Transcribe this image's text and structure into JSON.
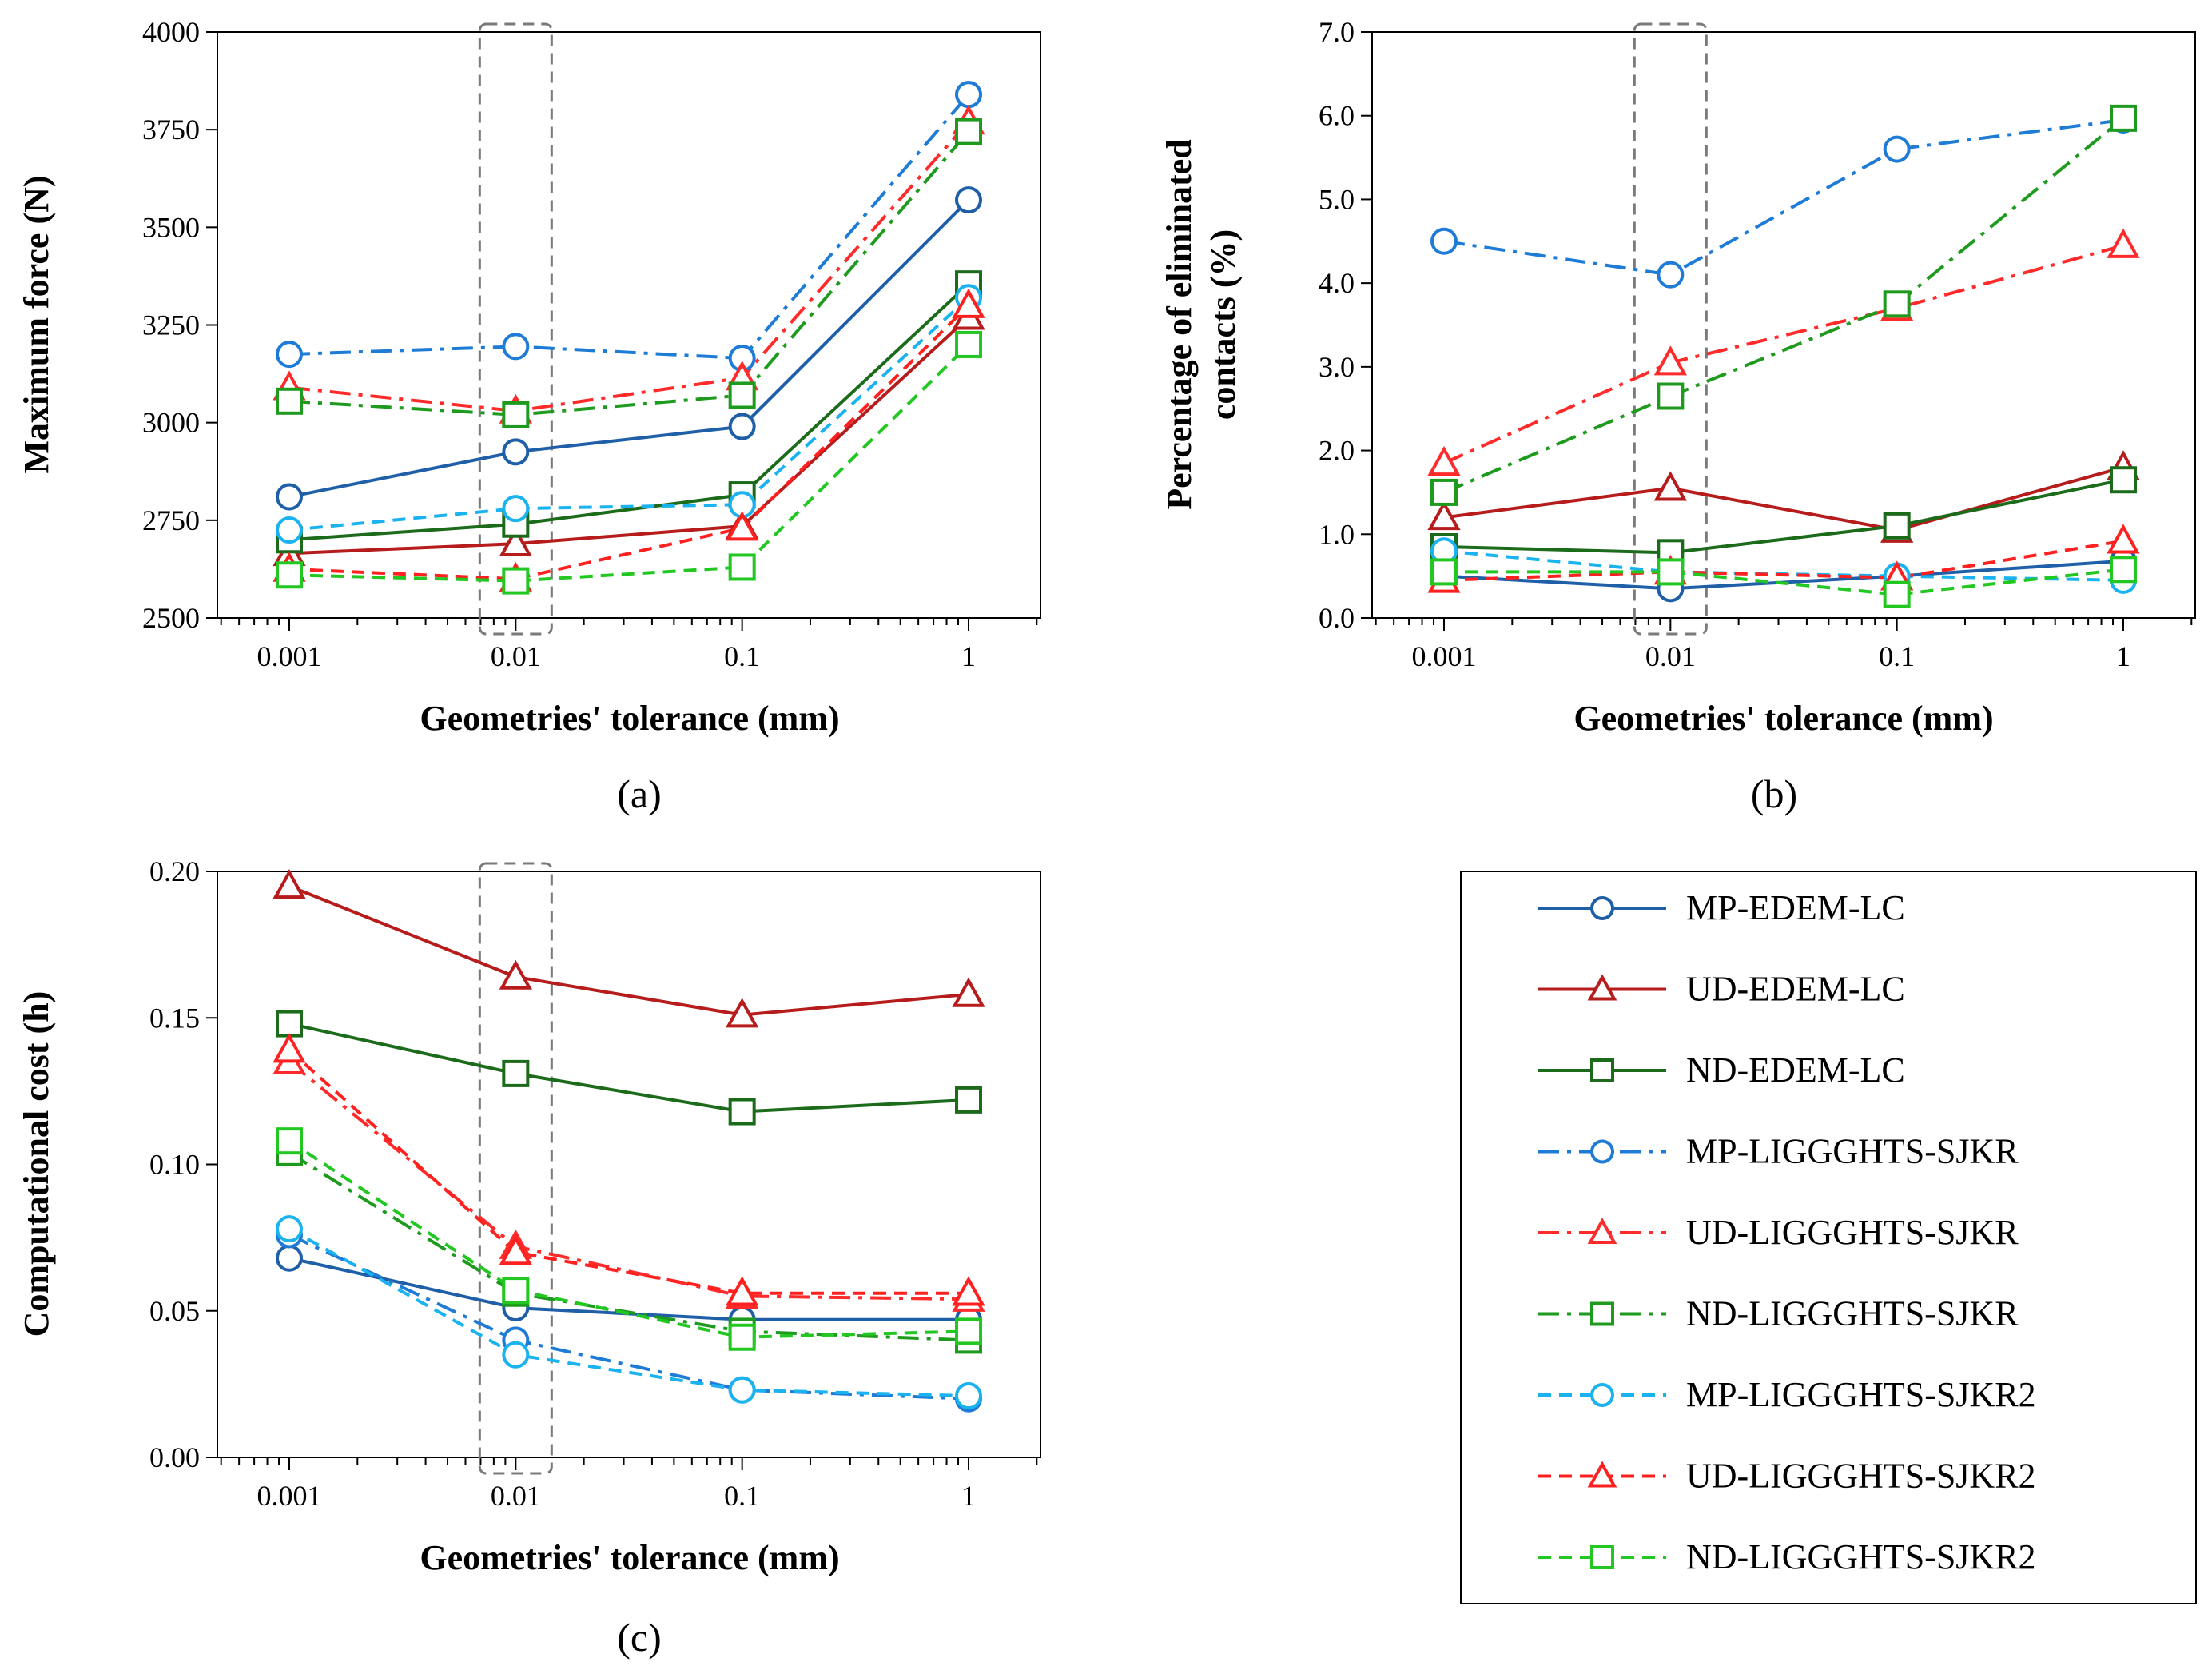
{
  "chart_data": [
    {
      "type": "line",
      "panel": "a",
      "caption": "(a)",
      "xscale": "log",
      "x": [
        0.001,
        0.01,
        0.1,
        1
      ],
      "xticks": [
        "0.001",
        "0.01",
        "0.1",
        "1"
      ],
      "xlabel": "Geometries' tolerance (mm)",
      "ylabel": "Maximum force (N)",
      "ylim": [
        2500,
        4000
      ],
      "yticks": [
        "2500",
        "2750",
        "3000",
        "3250",
        "3500",
        "3750",
        "4000"
      ],
      "highlight_x": 0.01,
      "series": [
        {
          "name": "MP-EDEM-LC",
          "values": [
            2810,
            2925,
            2990,
            3570
          ]
        },
        {
          "name": "UD-EDEM-LC",
          "values": [
            2665,
            2690,
            2735,
            3270
          ]
        },
        {
          "name": "ND-EDEM-LC",
          "values": [
            2700,
            2740,
            2815,
            3355
          ]
        },
        {
          "name": "MP-LIGGGHTS-SJKR",
          "values": [
            3175,
            3195,
            3165,
            3840
          ]
        },
        {
          "name": "UD-LIGGGHTS-SJKR",
          "values": [
            3090,
            3030,
            3115,
            3770
          ]
        },
        {
          "name": "ND-LIGGGHTS-SJKR",
          "values": [
            3055,
            3020,
            3070,
            3745
          ]
        },
        {
          "name": "MP-LIGGGHTS-SJKR2",
          "values": [
            2725,
            2780,
            2790,
            3320
          ]
        },
        {
          "name": "UD-LIGGGHTS-SJKR2",
          "values": [
            2625,
            2600,
            2730,
            3300
          ]
        },
        {
          "name": "ND-LIGGGHTS-SJKR2",
          "values": [
            2610,
            2595,
            2630,
            3200
          ]
        }
      ]
    },
    {
      "type": "line",
      "panel": "b",
      "caption": "(b)",
      "xscale": "log",
      "x": [
        0.001,
        0.01,
        0.1,
        1
      ],
      "xticks": [
        "0.001",
        "0.01",
        "0.1",
        "1"
      ],
      "xlabel": "Geometries' tolerance (mm)",
      "ylabel": [
        "Percentage of eliminated",
        "contacts (%)"
      ],
      "ylim": [
        0,
        7
      ],
      "yticks": [
        "0.0",
        "1.0",
        "2.0",
        "3.0",
        "4.0",
        "5.0",
        "6.0",
        "7.0"
      ],
      "highlight_x": 0.01,
      "series": [
        {
          "name": "MP-EDEM-LC",
          "values": [
            0.5,
            0.35,
            0.5,
            0.68
          ]
        },
        {
          "name": "UD-EDEM-LC",
          "values": [
            1.2,
            1.55,
            1.05,
            1.8
          ]
        },
        {
          "name": "ND-EDEM-LC",
          "values": [
            0.85,
            0.78,
            1.1,
            1.65
          ]
        },
        {
          "name": "MP-LIGGGHTS-SJKR",
          "values": [
            4.5,
            4.1,
            5.6,
            5.95
          ]
        },
        {
          "name": "UD-LIGGGHTS-SJKR",
          "values": [
            1.85,
            3.05,
            3.7,
            4.45
          ]
        },
        {
          "name": "ND-LIGGGHTS-SJKR",
          "values": [
            1.5,
            2.65,
            3.75,
            5.97
          ]
        },
        {
          "name": "MP-LIGGGHTS-SJKR2",
          "values": [
            0.8,
            0.55,
            0.5,
            0.45
          ]
        },
        {
          "name": "UD-LIGGGHTS-SJKR2",
          "values": [
            0.45,
            0.55,
            0.48,
            0.92
          ]
        },
        {
          "name": "ND-LIGGGHTS-SJKR2",
          "values": [
            0.55,
            0.55,
            0.28,
            0.58
          ]
        }
      ]
    },
    {
      "type": "line",
      "panel": "c",
      "caption": "(c)",
      "xscale": "log",
      "x": [
        0.001,
        0.01,
        0.1,
        1
      ],
      "xticks": [
        "0.001",
        "0.01",
        "0.1",
        "1"
      ],
      "xlabel": "Geometries' tolerance (mm)",
      "ylabel": "Computational cost (h)",
      "ylim": [
        0,
        0.2
      ],
      "yticks": [
        "0.00",
        "0.05",
        "0.10",
        "0.15",
        "0.20"
      ],
      "highlight_x": 0.01,
      "series": [
        {
          "name": "MP-EDEM-LC",
          "values": [
            0.068,
            0.051,
            0.047,
            0.047
          ]
        },
        {
          "name": "UD-EDEM-LC",
          "values": [
            0.195,
            0.164,
            0.151,
            0.158
          ]
        },
        {
          "name": "ND-EDEM-LC",
          "values": [
            0.148,
            0.131,
            0.118,
            0.122
          ]
        },
        {
          "name": "MP-LIGGGHTS-SJKR",
          "values": [
            0.076,
            0.04,
            0.023,
            0.02
          ]
        },
        {
          "name": "UD-LIGGGHTS-SJKR",
          "values": [
            0.135,
            0.072,
            0.055,
            0.054
          ]
        },
        {
          "name": "ND-LIGGGHTS-SJKR",
          "values": [
            0.104,
            0.056,
            0.043,
            0.04
          ]
        },
        {
          "name": "MP-LIGGGHTS-SJKR2",
          "values": [
            0.078,
            0.035,
            0.023,
            0.021
          ]
        },
        {
          "name": "UD-LIGGGHTS-SJKR2",
          "values": [
            0.139,
            0.07,
            0.056,
            0.056
          ]
        },
        {
          "name": "ND-LIGGGHTS-SJKR2",
          "values": [
            0.108,
            0.057,
            0.041,
            0.043
          ]
        }
      ]
    }
  ],
  "legend": {
    "entries": [
      {
        "name": "MP-EDEM-LC",
        "color": "#1F5FA8",
        "dash": "solid",
        "marker": "circle",
        "hollow": true
      },
      {
        "name": "UD-EDEM-LC",
        "color": "#B71C1C",
        "dash": "solid",
        "marker": "triangle",
        "hollow": true
      },
      {
        "name": "ND-EDEM-LC",
        "color": "#1B6B1B",
        "dash": "solid",
        "marker": "square",
        "hollow": true
      },
      {
        "name": "MP-LIGGGHTS-SJKR",
        "color": "#1E7BD6",
        "dash": "dashdot",
        "marker": "circle",
        "hollow": true
      },
      {
        "name": "UD-LIGGGHTS-SJKR",
        "color": "#FF2B2B",
        "dash": "dashdot",
        "marker": "triangle",
        "hollow": true
      },
      {
        "name": "ND-LIGGGHTS-SJKR",
        "color": "#1E9A1E",
        "dash": "dashdot",
        "marker": "square",
        "hollow": true
      },
      {
        "name": "MP-LIGGGHTS-SJKR2",
        "color": "#1AB3F0",
        "dash": "dashed",
        "marker": "circle",
        "hollow": true
      },
      {
        "name": "UD-LIGGGHTS-SJKR2",
        "color": "#FF2020",
        "dash": "dashed",
        "marker": "triangle",
        "hollow": true
      },
      {
        "name": "ND-LIGGGHTS-SJKR2",
        "color": "#22C722",
        "dash": "dashed",
        "marker": "square",
        "hollow": true
      }
    ]
  }
}
